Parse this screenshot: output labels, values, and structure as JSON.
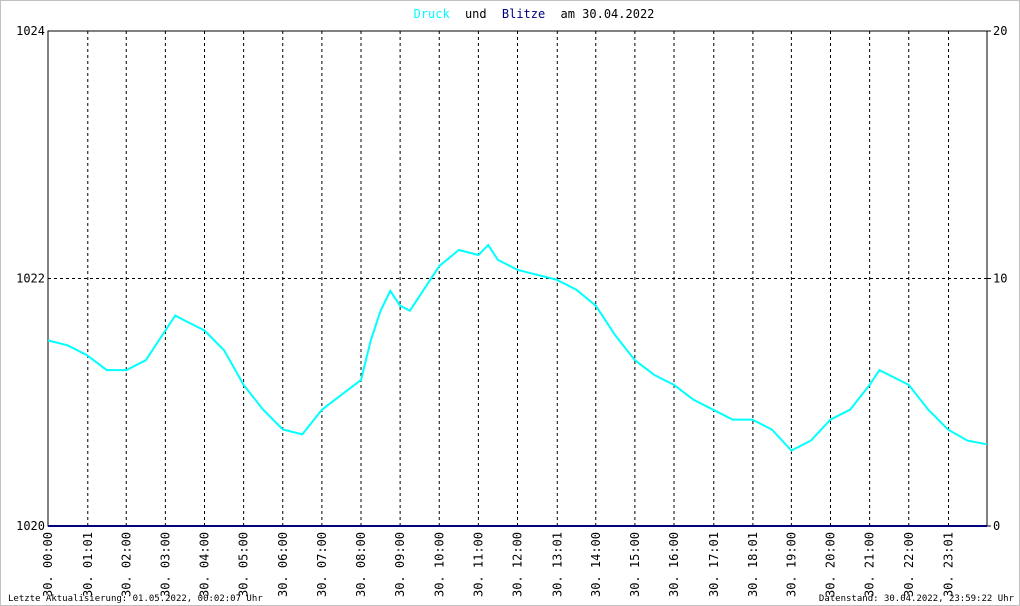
{
  "chart_data": {
    "type": "line",
    "title": {
      "parts": [
        "Druck",
        "und",
        "Blitze",
        "am 30.04.2022"
      ],
      "text_color": "#000000"
    },
    "xlim": [
      0,
      24
    ],
    "xticks": [
      {
        "value": 0,
        "label": "30. 00:00"
      },
      {
        "value": 1.0167,
        "label": "30. 01:01"
      },
      {
        "value": 2,
        "label": "30. 02:00"
      },
      {
        "value": 3,
        "label": "30. 03:00"
      },
      {
        "value": 4,
        "label": "30. 04:00"
      },
      {
        "value": 5,
        "label": "30. 05:00"
      },
      {
        "value": 6,
        "label": "30. 06:00"
      },
      {
        "value": 7,
        "label": "30. 07:00"
      },
      {
        "value": 8,
        "label": "30. 08:00"
      },
      {
        "value": 9,
        "label": "30. 09:00"
      },
      {
        "value": 10,
        "label": "30. 10:00"
      },
      {
        "value": 11,
        "label": "30. 11:00"
      },
      {
        "value": 12,
        "label": "30. 12:00"
      },
      {
        "value": 13.0167,
        "label": "30. 13:01"
      },
      {
        "value": 14,
        "label": "30. 14:00"
      },
      {
        "value": 15,
        "label": "30. 15:00"
      },
      {
        "value": 16,
        "label": "30. 16:00"
      },
      {
        "value": 17.0167,
        "label": "30. 17:01"
      },
      {
        "value": 18.0167,
        "label": "30. 18:01"
      },
      {
        "value": 19,
        "label": "30. 19:00"
      },
      {
        "value": 20,
        "label": "30. 20:00"
      },
      {
        "value": 21,
        "label": "30. 21:00"
      },
      {
        "value": 22,
        "label": "30. 22:00"
      },
      {
        "value": 23.0167,
        "label": "30. 23:01"
      }
    ],
    "ylim": [
      1020,
      1024
    ],
    "yticks": [
      1020,
      1022,
      1024
    ],
    "y2lim": [
      0,
      20
    ],
    "y2ticks": [
      0,
      10,
      20
    ],
    "grid": true,
    "series": [
      {
        "name": "Druck",
        "color": "#00ffff",
        "x": [
          0,
          0.5,
          1,
          1.5,
          2,
          2.5,
          3,
          3.25,
          3.5,
          4,
          4.5,
          5,
          5.5,
          6,
          6.5,
          7,
          7.5,
          8,
          8.25,
          8.5,
          8.75,
          9,
          9.25,
          9.5,
          10,
          10.5,
          11,
          11.25,
          11.5,
          12,
          12.5,
          13,
          13.5,
          14,
          14.5,
          15,
          15.5,
          16,
          16.5,
          17,
          17.5,
          18,
          18.5,
          19,
          19.5,
          20,
          20.5,
          21,
          21.25,
          21.5,
          22,
          22.5,
          23,
          23.5,
          24
        ],
        "values": [
          1021.5,
          1021.46,
          1021.38,
          1021.26,
          1021.26,
          1021.34,
          1021.58,
          1021.7,
          1021.66,
          1021.58,
          1021.42,
          1021.14,
          1020.94,
          1020.78,
          1020.74,
          1020.94,
          1021.06,
          1021.18,
          1021.5,
          1021.74,
          1021.9,
          1021.78,
          1021.74,
          1021.86,
          1022.1,
          1022.23,
          1022.19,
          1022.27,
          1022.15,
          1022.07,
          1022.03,
          1021.99,
          1021.91,
          1021.78,
          1021.54,
          1021.34,
          1021.22,
          1021.14,
          1021.02,
          1020.94,
          1020.86,
          1020.86,
          1020.78,
          1020.61,
          1020.69,
          1020.86,
          1020.94,
          1021.14,
          1021.26,
          1021.22,
          1021.14,
          1020.94,
          1020.78,
          1020.69,
          1020.66
        ]
      },
      {
        "name": "Blitze",
        "color": "#000080",
        "axis": "y2",
        "x": [
          0,
          24
        ],
        "values": [
          0,
          0
        ]
      }
    ],
    "footer_left": "Letzte Aktualisierung: 01.05.2022, 00:02:07 Uhr",
    "footer_right": "Datenstand: 30.04.2022, 23:59:22 Uhr"
  }
}
